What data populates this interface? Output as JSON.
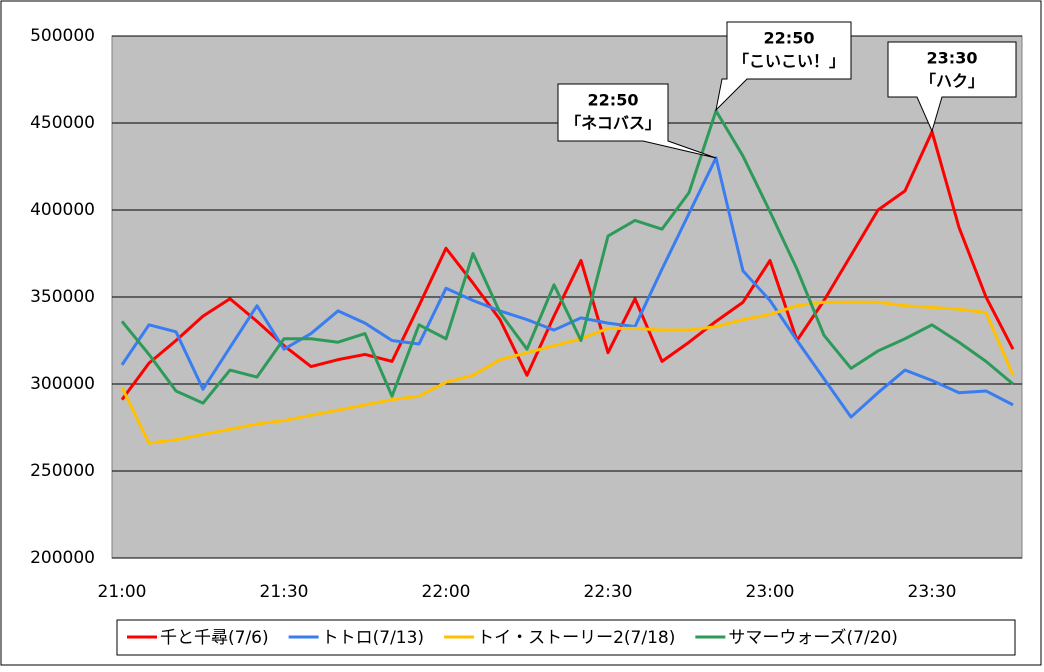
{
  "chart_data": {
    "type": "line",
    "categories": [
      "21:00",
      null,
      null,
      null,
      null,
      null,
      "21:30",
      null,
      null,
      null,
      null,
      null,
      "22:00",
      null,
      null,
      null,
      null,
      null,
      "22:30",
      null,
      null,
      null,
      null,
      null,
      "23:00",
      null,
      null,
      null,
      null,
      null,
      "23:30",
      null,
      null,
      null
    ],
    "ylim": [
      200000,
      500000
    ],
    "yticks": [
      200000,
      250000,
      300000,
      350000,
      400000,
      450000,
      500000
    ],
    "grid": true,
    "series": [
      {
        "name": "千と千尋(7/6)",
        "color": "#ff0000",
        "values": [
          291000,
          312000,
          325000,
          339000,
          349000,
          336000,
          322000,
          310000,
          314000,
          317000,
          313000,
          345000,
          378000,
          358000,
          337000,
          305000,
          339000,
          371000,
          318000,
          349000,
          313000,
          324000,
          336000,
          347000,
          371000,
          325000,
          348000,
          374000,
          400000,
          411000,
          445000,
          390000,
          350000,
          320000
        ]
      },
      {
        "name": "トトロ(7/13)",
        "color": "#3a7df0",
        "values": [
          311000,
          334000,
          330000,
          297000,
          321000,
          345000,
          320000,
          329000,
          342000,
          335000,
          325000,
          323000,
          355000,
          348000,
          342000,
          337000,
          331000,
          338000,
          335000,
          333000,
          366000,
          398000,
          430000,
          365000,
          348000,
          325000,
          303000,
          281000,
          295000,
          308000,
          302000,
          295000,
          296000,
          288000
        ]
      },
      {
        "name": "トイ・ストーリー2(7/18)",
        "color": "#ffc000",
        "values": [
          298000,
          266000,
          268000,
          271000,
          274000,
          277000,
          279000,
          282000,
          285000,
          288000,
          291000,
          293000,
          301000,
          305000,
          314000,
          318000,
          322000,
          326000,
          332000,
          332000,
          331000,
          331000,
          333000,
          337000,
          340000,
          345000,
          347000,
          347000,
          347000,
          345000,
          344000,
          343000,
          341000,
          305000
        ]
      },
      {
        "name": "サマーウォーズ(7/20)",
        "color": "#2e9a5a",
        "values": [
          336000,
          317000,
          296000,
          289000,
          308000,
          304000,
          326000,
          326000,
          324000,
          329000,
          293000,
          334000,
          326000,
          375000,
          341000,
          320000,
          357000,
          325000,
          385000,
          394000,
          389000,
          410000,
          457000,
          431000,
          399000,
          366000,
          328000,
          309000,
          319000,
          326000,
          334000,
          324000,
          313000,
          300000
        ]
      }
    ],
    "annotations": [
      {
        "time": "22:50",
        "label": "「ネコバス」"
      },
      {
        "time": "22:50",
        "label": "「こいこい！」"
      },
      {
        "time": "23:30",
        "label": "「ハク」"
      }
    ]
  }
}
